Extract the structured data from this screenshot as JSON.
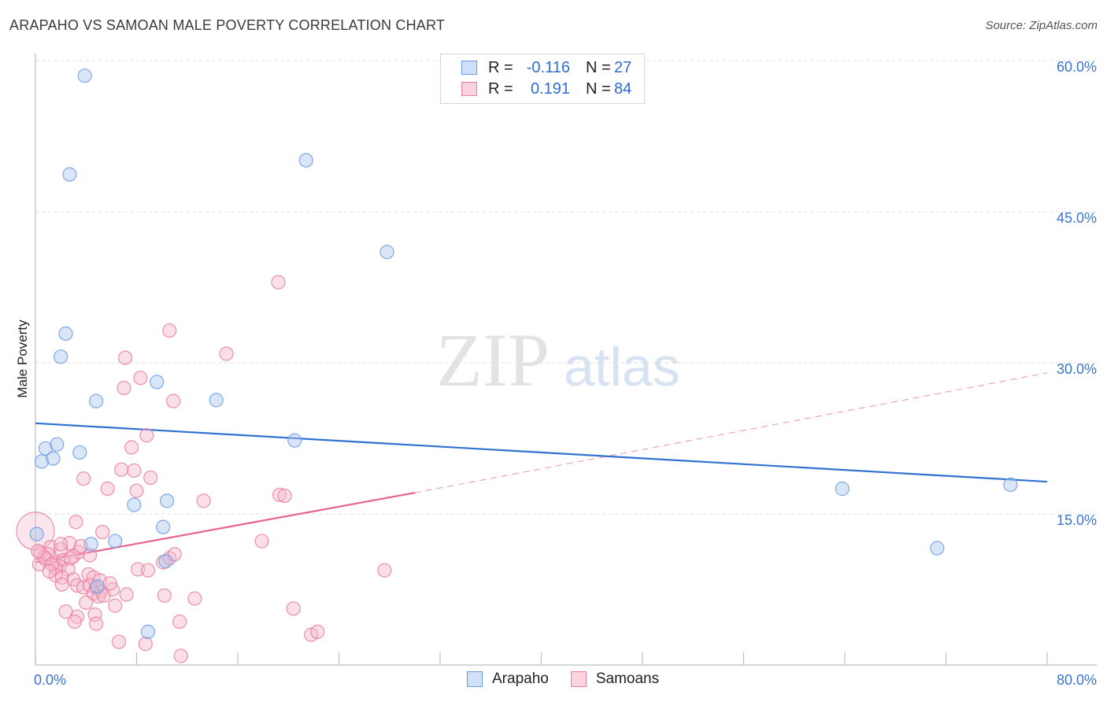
{
  "header": {
    "title": "ARAPAHO VS SAMOAN MALE POVERTY CORRELATION CHART",
    "source": "Source: ZipAtlas.com"
  },
  "watermark": {
    "zip": "ZIP",
    "atlas": "atlas"
  },
  "legend": {
    "rows": [
      {
        "r_label": "R =",
        "r_value": "-0.116",
        "n_label": "N =",
        "n_value": "27",
        "color": "#a9c7f0",
        "border": "#6b9be0"
      },
      {
        "r_label": "R =",
        "r_value": "0.191",
        "n_label": "N =",
        "n_value": "84",
        "color": "#f7b8ca",
        "border": "#e87fa0"
      }
    ]
  },
  "bottom_legend": [
    {
      "label": "Arapaho",
      "color": "#a9c7f0",
      "border": "#6b9be0"
    },
    {
      "label": "Samoans",
      "color": "#f7b8ca",
      "border": "#e87fa0"
    }
  ],
  "chart_data": {
    "type": "scatter",
    "title": "ARAPAHO VS SAMOAN MALE POVERTY CORRELATION CHART",
    "xlabel": "",
    "ylabel": "Male Poverty",
    "xlim": [
      0,
      80
    ],
    "ylim": [
      0,
      60
    ],
    "x_tick_labels": [
      "0.0%",
      "80.0%"
    ],
    "y_ticks": [
      15,
      30,
      45,
      60
    ],
    "y_tick_labels": [
      "15.0%",
      "30.0%",
      "45.0%",
      "60.0%"
    ],
    "grid": true,
    "series": [
      {
        "name": "Arapaho",
        "color": "#a9c7f0",
        "stroke": "#6b9be0",
        "line_color": "#2f72cf",
        "trend": {
          "x0": 0,
          "y0": 24.0,
          "x1": 80,
          "y1": 18.2
        },
        "points": [
          [
            3.9,
            58.5
          ],
          [
            2.7,
            48.7
          ],
          [
            21.4,
            50.1
          ],
          [
            27.8,
            41.0
          ],
          [
            2.4,
            32.9
          ],
          [
            2.0,
            30.6
          ],
          [
            4.8,
            26.2
          ],
          [
            9.6,
            28.1
          ],
          [
            14.3,
            26.3
          ],
          [
            0.8,
            21.5
          ],
          [
            1.7,
            21.9
          ],
          [
            0.5,
            20.2
          ],
          [
            1.4,
            20.5
          ],
          [
            3.5,
            21.1
          ],
          [
            20.5,
            22.3
          ],
          [
            7.8,
            15.9
          ],
          [
            10.4,
            16.3
          ],
          [
            10.1,
            13.7
          ],
          [
            0.1,
            13.0
          ],
          [
            4.4,
            12.0
          ],
          [
            6.3,
            12.3
          ],
          [
            10.3,
            10.3
          ],
          [
            4.9,
            7.8
          ],
          [
            8.9,
            3.3
          ],
          [
            63.8,
            17.5
          ],
          [
            77.1,
            17.9
          ],
          [
            71.3,
            11.6
          ]
        ]
      },
      {
        "name": "Samoans",
        "color": "#f7b8ca",
        "stroke": "#e87fa0",
        "line_color": "#e8638e",
        "trend_solid": {
          "x0": 0,
          "y0": 10.2,
          "x1": 30,
          "y1": 17.1
        },
        "trend_dashed": {
          "x0": 30,
          "y0": 17.1,
          "x1": 80,
          "y1": 29.0
        },
        "points": [
          [
            0.0,
            13.3
          ],
          [
            19.2,
            38.0
          ],
          [
            10.6,
            33.2
          ],
          [
            7.1,
            30.5
          ],
          [
            15.1,
            30.9
          ],
          [
            8.3,
            28.5
          ],
          [
            7.0,
            27.5
          ],
          [
            10.9,
            26.2
          ],
          [
            8.8,
            22.8
          ],
          [
            7.6,
            21.6
          ],
          [
            6.8,
            19.4
          ],
          [
            7.8,
            19.3
          ],
          [
            3.8,
            18.5
          ],
          [
            9.1,
            18.6
          ],
          [
            5.7,
            17.5
          ],
          [
            8.0,
            17.3
          ],
          [
            19.3,
            16.9
          ],
          [
            19.7,
            16.8
          ],
          [
            13.3,
            16.3
          ],
          [
            3.2,
            14.2
          ],
          [
            5.3,
            13.2
          ],
          [
            17.9,
            12.3
          ],
          [
            2.7,
            12.1
          ],
          [
            1.2,
            11.7
          ],
          [
            3.4,
            11.2
          ],
          [
            2.0,
            11.5
          ],
          [
            0.4,
            11.1
          ],
          [
            1.0,
            11.0
          ],
          [
            3.0,
            10.8
          ],
          [
            4.3,
            10.9
          ],
          [
            0.8,
            10.5
          ],
          [
            1.5,
            10.2
          ],
          [
            2.2,
            10.4
          ],
          [
            0.3,
            10.0
          ],
          [
            1.9,
            9.8
          ],
          [
            2.6,
            9.5
          ],
          [
            1.6,
            9.6
          ],
          [
            8.1,
            9.5
          ],
          [
            8.9,
            9.4
          ],
          [
            10.1,
            10.2
          ],
          [
            10.6,
            10.6
          ],
          [
            11.0,
            11.0
          ],
          [
            27.6,
            9.4
          ],
          [
            1.6,
            8.9
          ],
          [
            2.1,
            8.7
          ],
          [
            3.0,
            8.5
          ],
          [
            4.2,
            9.0
          ],
          [
            4.6,
            8.7
          ],
          [
            5.1,
            8.4
          ],
          [
            2.1,
            8.0
          ],
          [
            3.3,
            7.9
          ],
          [
            3.8,
            7.7
          ],
          [
            4.3,
            7.9
          ],
          [
            4.8,
            7.6
          ],
          [
            5.2,
            7.3
          ],
          [
            6.1,
            7.5
          ],
          [
            4.6,
            7.1
          ],
          [
            5.0,
            6.8
          ],
          [
            5.4,
            6.9
          ],
          [
            7.2,
            7.0
          ],
          [
            10.2,
            6.9
          ],
          [
            12.6,
            6.6
          ],
          [
            4.0,
            6.2
          ],
          [
            6.3,
            5.9
          ],
          [
            20.4,
            5.6
          ],
          [
            2.4,
            5.3
          ],
          [
            3.3,
            4.8
          ],
          [
            4.7,
            5.0
          ],
          [
            3.1,
            4.3
          ],
          [
            4.8,
            4.1
          ],
          [
            11.4,
            4.3
          ],
          [
            21.8,
            3.0
          ],
          [
            22.3,
            3.3
          ],
          [
            6.6,
            2.3
          ],
          [
            8.7,
            2.1
          ],
          [
            11.5,
            0.9
          ],
          [
            0.7,
            10.7
          ],
          [
            1.3,
            10.0
          ],
          [
            2.8,
            10.6
          ],
          [
            3.6,
            11.8
          ],
          [
            0.2,
            11.3
          ],
          [
            2.0,
            12.0
          ],
          [
            5.9,
            8.1
          ],
          [
            1.1,
            9.3
          ]
        ]
      }
    ]
  }
}
